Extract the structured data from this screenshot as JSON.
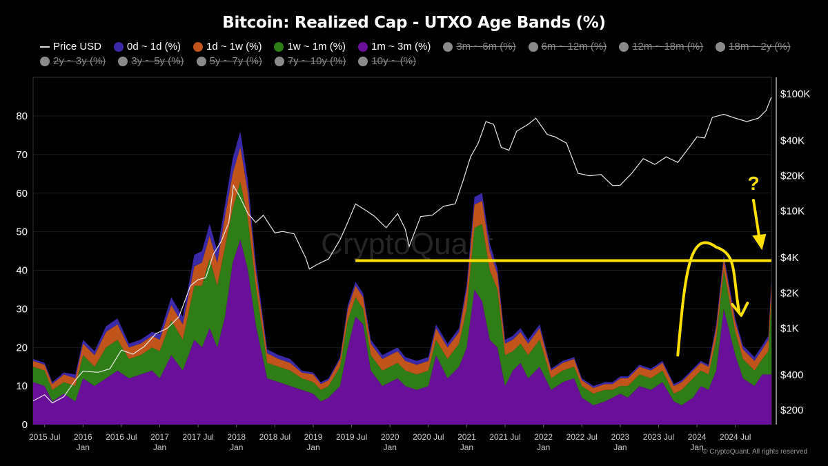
{
  "chart_data": {
    "type": "area",
    "title": "Bitcoin: Realized Cap - UTXO Age Bands (%)",
    "watermark": "CryptoQuant",
    "footer": "© CryptoQuant. All rights reserved",
    "y_left": {
      "ylim": [
        0,
        85
      ],
      "ticks": [
        "0",
        "10",
        "20",
        "30",
        "40",
        "50",
        "60",
        "70",
        "80"
      ]
    },
    "y_right": {
      "scale": "log",
      "ticks": [
        {
          "label": "$200",
          "value": 200
        },
        {
          "label": "$400",
          "value": 400
        },
        {
          "label": "$1K",
          "value": 1000
        },
        {
          "label": "$2K",
          "value": 2000
        },
        {
          "label": "$4K",
          "value": 4000
        },
        {
          "label": "$10K",
          "value": 10000
        },
        {
          "label": "$20K",
          "value": 20000
        },
        {
          "label": "$40K",
          "value": 40000
        },
        {
          "label": "$100K",
          "value": 100000
        }
      ]
    },
    "x_ticks": [
      {
        "label": "2015 Jul",
        "sub": "",
        "t": 2015.5
      },
      {
        "label": "2016",
        "sub": "Jan",
        "t": 2016.0
      },
      {
        "label": "2016 Jul",
        "sub": "",
        "t": 2016.5
      },
      {
        "label": "2017",
        "sub": "Jan",
        "t": 2017.0
      },
      {
        "label": "2017 Jul",
        "sub": "",
        "t": 2017.5
      },
      {
        "label": "2018",
        "sub": "Jan",
        "t": 2018.0
      },
      {
        "label": "2018 Jul",
        "sub": "",
        "t": 2018.5
      },
      {
        "label": "2019",
        "sub": "Jan",
        "t": 2019.0
      },
      {
        "label": "2019 Jul",
        "sub": "",
        "t": 2019.5
      },
      {
        "label": "2020",
        "sub": "Jan",
        "t": 2020.0
      },
      {
        "label": "2020 Jul",
        "sub": "",
        "t": 2020.5
      },
      {
        "label": "2021",
        "sub": "Jan",
        "t": 2021.0
      },
      {
        "label": "2021 Jul",
        "sub": "",
        "t": 2021.5
      },
      {
        "label": "2022",
        "sub": "Jan",
        "t": 2022.0
      },
      {
        "label": "2022 Jul",
        "sub": "",
        "t": 2022.5
      },
      {
        "label": "2023",
        "sub": "Jan",
        "t": 2023.0
      },
      {
        "label": "2023 Jul",
        "sub": "",
        "t": 2023.5
      },
      {
        "label": "2024",
        "sub": "Jan",
        "t": 2024.0
      },
      {
        "label": "2024 Jul",
        "sub": "",
        "t": 2024.5
      }
    ],
    "x_range": [
      2015.35,
      2024.97
    ],
    "legend": [
      {
        "label": "Price USD",
        "color": "#dddddd",
        "active": true,
        "kind": "line"
      },
      {
        "label": "0d ~ 1d (%)",
        "color": "#3b2aa8",
        "active": true
      },
      {
        "label": "1d ~ 1w (%)",
        "color": "#c0541a",
        "active": true
      },
      {
        "label": "1w ~ 1m (%)",
        "color": "#2f7d16",
        "active": true
      },
      {
        "label": "1m ~ 3m (%)",
        "color": "#6a0f9a",
        "active": true
      },
      {
        "label": "3m ~ 6m (%)",
        "active": false
      },
      {
        "label": "6m ~ 12m (%)",
        "active": false
      },
      {
        "label": "12m ~ 18m (%)",
        "active": false
      },
      {
        "label": "18m ~ 2y (%)",
        "active": false
      },
      {
        "label": "2y ~ 3y (%)",
        "active": false
      },
      {
        "label": "3y ~ 5y (%)",
        "active": false
      },
      {
        "label": "5y ~ 7y (%)",
        "active": false
      },
      {
        "label": "7y ~ 10y (%)",
        "active": false
      },
      {
        "label": "10y ~ (%)",
        "active": false
      }
    ],
    "annotation": {
      "hline_value": 42.5,
      "hline_from": 2019.55,
      "hline_to": 2024.97,
      "color": "#ffe000",
      "question": "?"
    },
    "x": [
      2015.35,
      2015.5,
      2015.6,
      2015.75,
      2015.9,
      2016.0,
      2016.15,
      2016.3,
      2016.45,
      2016.6,
      2016.75,
      2016.9,
      2017.0,
      2017.15,
      2017.3,
      2017.45,
      2017.55,
      2017.65,
      2017.75,
      2017.85,
      2017.95,
      2018.05,
      2018.15,
      2018.25,
      2018.4,
      2018.55,
      2018.7,
      2018.85,
      2019.0,
      2019.1,
      2019.2,
      2019.35,
      2019.45,
      2019.55,
      2019.65,
      2019.75,
      2019.9,
      2020.0,
      2020.1,
      2020.2,
      2020.35,
      2020.5,
      2020.6,
      2020.75,
      2020.9,
      2021.0,
      2021.1,
      2021.2,
      2021.3,
      2021.4,
      2021.5,
      2021.6,
      2021.7,
      2021.8,
      2021.95,
      2022.1,
      2022.25,
      2022.4,
      2022.5,
      2022.65,
      2022.8,
      2022.9,
      2023.0,
      2023.1,
      2023.25,
      2023.4,
      2023.55,
      2023.7,
      2023.8,
      2023.95,
      2024.05,
      2024.15,
      2024.25,
      2024.35,
      2024.5,
      2024.6,
      2024.75,
      2024.85,
      2024.93,
      2024.97
    ],
    "series": [
      {
        "name": "1m ~ 3m (%)",
        "values": [
          11,
          10,
          6,
          8,
          6,
          12,
          10,
          12,
          14,
          12,
          13,
          14,
          12,
          18,
          14,
          22,
          20,
          25,
          20,
          28,
          42,
          48,
          40,
          26,
          12,
          11,
          10,
          9,
          8,
          6,
          7,
          10,
          20,
          28,
          26,
          14,
          10,
          11,
          12,
          10,
          9,
          10,
          18,
          12,
          15,
          20,
          35,
          32,
          22,
          20,
          10,
          14,
          16,
          12,
          15,
          9,
          11,
          12,
          7,
          5,
          6,
          7,
          8,
          7,
          10,
          9,
          11,
          6,
          5,
          7,
          10,
          9,
          14,
          30,
          18,
          12,
          10,
          13,
          13,
          13
        ]
      },
      {
        "name": "1w ~ 1m (%)",
        "values": [
          4,
          4,
          3,
          3,
          4,
          6,
          5,
          8,
          8,
          5,
          5,
          6,
          7,
          9,
          8,
          14,
          16,
          18,
          16,
          18,
          14,
          15,
          13,
          10,
          4,
          4,
          4,
          3,
          3,
          3,
          3,
          5,
          7,
          5,
          4,
          4,
          4,
          4,
          4,
          4,
          4,
          4,
          4,
          5,
          6,
          10,
          16,
          20,
          18,
          15,
          8,
          5,
          5,
          6,
          7,
          3,
          3,
          3,
          3,
          3,
          3,
          2,
          2,
          3,
          3,
          3,
          3,
          2,
          4,
          5,
          4,
          4,
          8,
          10,
          6,
          5,
          4,
          4,
          6,
          20
        ]
      },
      {
        "name": "1d ~ 1w (%)",
        "values": [
          1.5,
          1.5,
          1.5,
          2,
          2,
          3,
          3,
          4,
          4,
          3,
          3,
          3,
          3,
          4,
          4,
          5,
          6,
          6,
          6,
          8,
          9,
          9,
          7,
          4,
          2.5,
          2,
          2,
          1.5,
          2,
          1.5,
          1.5,
          2,
          3,
          3,
          3,
          3,
          3,
          3,
          3,
          2.5,
          2.5,
          2.5,
          3,
          3,
          3,
          5,
          6,
          6,
          5,
          4,
          3,
          3,
          3,
          3,
          3,
          2,
          2,
          2,
          1.5,
          1.5,
          1.5,
          1.5,
          2,
          2,
          2,
          2,
          2,
          2,
          2,
          2,
          2,
          2,
          3,
          3,
          2.5,
          2.5,
          2.5,
          2.5,
          3,
          4
        ]
      },
      {
        "name": "0d ~ 1d (%)",
        "values": [
          0.5,
          0.5,
          0.5,
          0.5,
          1,
          1,
          1,
          1.5,
          1.5,
          1,
          1,
          1,
          1.5,
          2,
          2,
          3,
          3,
          3,
          3,
          3,
          4,
          4,
          3,
          2,
          1,
          1,
          1,
          0.5,
          0.5,
          0.5,
          0.5,
          0.5,
          1,
          1,
          1,
          1,
          1,
          1,
          1,
          1,
          1,
          1,
          1,
          1,
          1,
          1.5,
          2,
          2,
          2,
          1.5,
          1,
          1,
          1,
          1,
          1,
          0.5,
          0.5,
          0.5,
          0.5,
          0.5,
          0.5,
          0.5,
          0.5,
          0.5,
          0.5,
          0.5,
          0.5,
          0.5,
          0.5,
          0.5,
          0.5,
          0.5,
          1,
          1,
          1,
          1,
          1,
          1,
          1,
          1
        ]
      }
    ],
    "price_usd": {
      "name": "Price USD",
      "x": [
        2015.35,
        2015.5,
        2015.6,
        2015.75,
        2015.9,
        2016.0,
        2016.2,
        2016.35,
        2016.5,
        2016.65,
        2016.8,
        2016.95,
        2017.1,
        2017.25,
        2017.4,
        2017.5,
        2017.6,
        2017.7,
        2017.8,
        2017.9,
        2017.96,
        2018.05,
        2018.15,
        2018.25,
        2018.35,
        2018.5,
        2018.6,
        2018.75,
        2018.9,
        2018.95,
        2019.05,
        2019.2,
        2019.35,
        2019.45,
        2019.55,
        2019.7,
        2019.8,
        2019.95,
        2020.1,
        2020.2,
        2020.25,
        2020.4,
        2020.55,
        2020.7,
        2020.85,
        2020.95,
        2021.05,
        2021.15,
        2021.25,
        2021.35,
        2021.45,
        2021.55,
        2021.65,
        2021.8,
        2021.9,
        2022.05,
        2022.15,
        2022.3,
        2022.45,
        2022.6,
        2022.75,
        2022.9,
        2023.0,
        2023.15,
        2023.3,
        2023.45,
        2023.6,
        2023.75,
        2023.9,
        2024.0,
        2024.1,
        2024.2,
        2024.35,
        2024.5,
        2024.65,
        2024.8,
        2024.9,
        2024.97
      ],
      "values": [
        240,
        270,
        230,
        260,
        360,
        430,
        420,
        450,
        650,
        600,
        700,
        900,
        1000,
        1250,
        2300,
        2600,
        2700,
        4300,
        5500,
        8000,
        16500,
        13000,
        9500,
        8000,
        9200,
        6500,
        6700,
        6400,
        4000,
        3200,
        3500,
        3900,
        5700,
        8000,
        11500,
        10000,
        9000,
        7200,
        9500,
        7000,
        5000,
        9000,
        9200,
        11000,
        11500,
        18000,
        29000,
        38000,
        58000,
        55000,
        35000,
        33000,
        48000,
        55000,
        62000,
        45000,
        43000,
        38000,
        21000,
        20000,
        20500,
        16500,
        16600,
        21000,
        28000,
        25000,
        29000,
        26000,
        35000,
        43000,
        42000,
        63000,
        67000,
        62000,
        58000,
        62000,
        72000,
        94000
      ]
    }
  }
}
